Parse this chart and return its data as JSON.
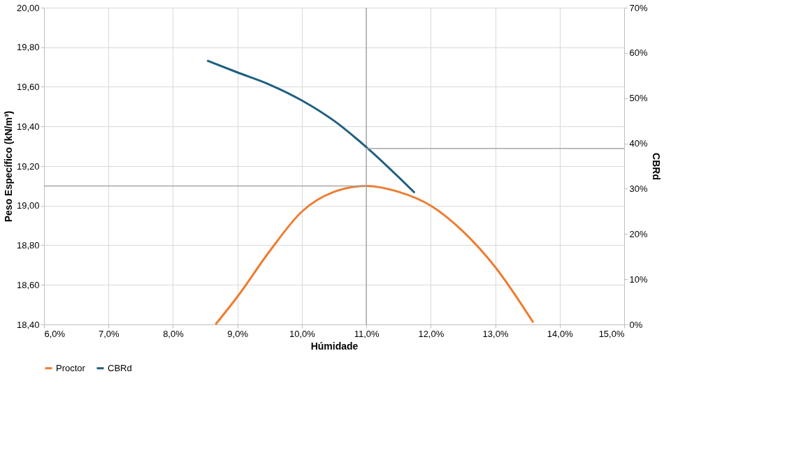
{
  "chart_data": {
    "type": "line",
    "xlabel": "Húmidade",
    "ylabel": "Peso Específico (kN/m³)",
    "y2label": "CBRd",
    "series": [
      {
        "name": "Proctor",
        "color": "#ed7d31",
        "x": [
          8.66,
          9.0,
          9.5,
          10.0,
          10.5,
          11.0,
          11.5,
          12.0,
          12.5,
          13.0,
          13.59
        ],
        "values": [
          18.4,
          18.54,
          18.77,
          18.97,
          19.07,
          19.1,
          19.07,
          19.0,
          18.87,
          18.69,
          18.41
        ]
      },
      {
        "name": "CBRd",
        "color": "#1f5f7f",
        "axis": "y2",
        "x": [
          8.53,
          9.0,
          9.5,
          10.0,
          10.5,
          11.0,
          11.75
        ],
        "values": [
          58.3,
          55.7,
          53.0,
          49.5,
          45.0,
          39.2,
          29.1
        ]
      }
    ],
    "xlim": [
      6,
      15
    ],
    "xticks": [
      {
        "value": 6,
        "label": "6,0%"
      },
      {
        "value": 7,
        "label": "7,0%"
      },
      {
        "value": 8,
        "label": "8,0%"
      },
      {
        "value": 9,
        "label": "9,0%"
      },
      {
        "value": 10,
        "label": "10,0%"
      },
      {
        "value": 11,
        "label": "11,0%"
      },
      {
        "value": 12,
        "label": "12,0%"
      },
      {
        "value": 13,
        "label": "13,0%"
      },
      {
        "value": 14,
        "label": "14,0%"
      },
      {
        "value": 15,
        "label": "15,0%"
      }
    ],
    "ylim": [
      18.4,
      20.0
    ],
    "yticks": [
      {
        "value": 18.4,
        "label": "18,40"
      },
      {
        "value": 18.6,
        "label": "18,60"
      },
      {
        "value": 18.8,
        "label": "18,80"
      },
      {
        "value": 19.0,
        "label": "19,00"
      },
      {
        "value": 19.2,
        "label": "19,20"
      },
      {
        "value": 19.4,
        "label": "19,40"
      },
      {
        "value": 19.6,
        "label": "19,60"
      },
      {
        "value": 19.8,
        "label": "19,80"
      },
      {
        "value": 20.0,
        "label": "20,00"
      }
    ],
    "y2lim": [
      0,
      70
    ],
    "y2ticks": [
      {
        "value": 0,
        "label": "0%"
      },
      {
        "value": 10,
        "label": "10%"
      },
      {
        "value": 20,
        "label": "20%"
      },
      {
        "value": 30,
        "label": "30%"
      },
      {
        "value": 40,
        "label": "40%"
      },
      {
        "value": 50,
        "label": "50%"
      },
      {
        "value": 60,
        "label": "60%"
      },
      {
        "value": 70,
        "label": "70%"
      }
    ],
    "ref_lines": [
      {
        "axis": "y",
        "value": 19.1,
        "color": "#a6a6a6"
      },
      {
        "axis": "x",
        "value": 11.0,
        "color": "#a6a6a6"
      },
      {
        "axis": "y2",
        "value": 38.9,
        "color": "#a6a6a6"
      }
    ],
    "grid": true,
    "legend": "bottom",
    "marker": "none",
    "line_style": "solid"
  }
}
